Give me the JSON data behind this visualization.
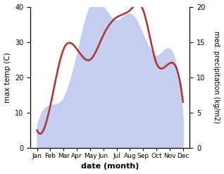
{
  "months": [
    1,
    2,
    3,
    4,
    5,
    6,
    7,
    8,
    9,
    10,
    11,
    12
  ],
  "month_labels": [
    "Jan",
    "Feb",
    "Mar",
    "Apr",
    "May",
    "Jun",
    "Jul",
    "Aug",
    "Sep",
    "Oct",
    "Nov",
    "Dec"
  ],
  "temperature": [
    5,
    12,
    28,
    28,
    25,
    32,
    37,
    39,
    39,
    24,
    24,
    13
  ],
  "precipitation": [
    3,
    6,
    7,
    13,
    20,
    20,
    18,
    19,
    16,
    13,
    14,
    4
  ],
  "temp_color": "#b03030",
  "precip_color_fill": "#c5cef0",
  "temp_ylim": [
    0,
    40
  ],
  "precip_ylim": [
    0,
    20
  ],
  "xlabel": "date (month)",
  "ylabel_left": "max temp (C)",
  "ylabel_right": "med. precipitation (kg/m2)",
  "fig_width": 3.18,
  "fig_height": 2.47,
  "dpi": 100
}
